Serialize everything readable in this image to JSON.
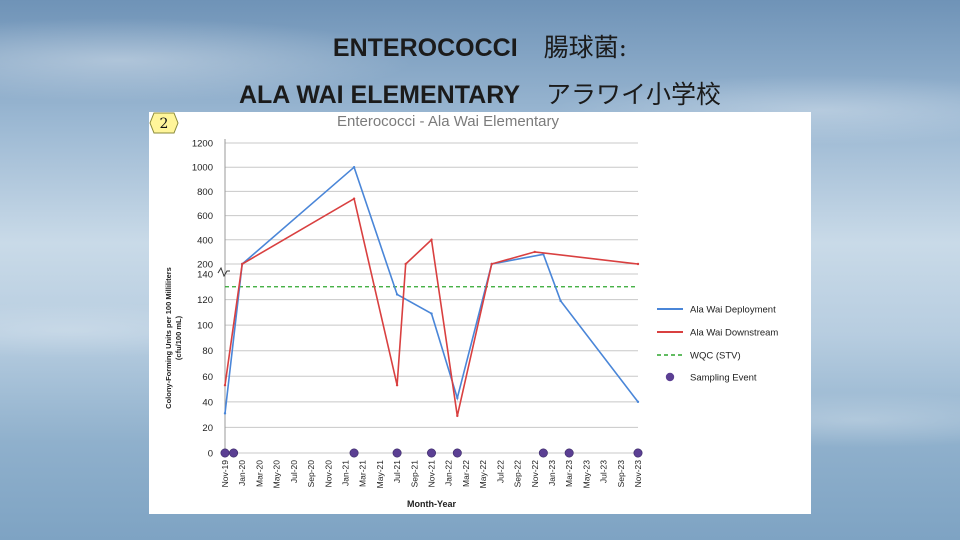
{
  "slide": {
    "title_en": "ENTEROCOCCI",
    "title_jp": "腸球菌:",
    "subtitle_en": "ALA WAI ELEMENTARY",
    "subtitle_jp": "アラワイ小学校"
  },
  "badge": "2",
  "colors": {
    "deployment": "#4a86d8",
    "downstream": "#d94040",
    "wqc": "#2ea62e",
    "event": "#5b3f93",
    "grid": "#c8c8c8"
  },
  "chart_data": {
    "type": "line",
    "title": "Enterococci - Ala Wai Elementary",
    "xlabel": "Month-Year",
    "ylabel_line1": "Colony-Forming Units per 100 Milliliters",
    "ylabel_line2": "(cfu/100 mL)",
    "y_axis": "broken",
    "ylim_lower": [
      0,
      140
    ],
    "ylim_upper": [
      140,
      1200
    ],
    "y_ticks_lower": [
      0,
      20,
      40,
      60,
      80,
      100,
      120,
      140
    ],
    "y_ticks_upper": [
      200,
      400,
      600,
      800,
      1000,
      1200
    ],
    "x_ticks": [
      "Nov-19",
      "Jan-20",
      "Mar-20",
      "May-20",
      "Jul-20",
      "Sep-20",
      "Nov-20",
      "Jan-21",
      "Mar-21",
      "May-21",
      "Jul-21",
      "Sep-21",
      "Nov-21",
      "Jan-22",
      "Mar-22",
      "May-22",
      "Jul-22",
      "Sep-22",
      "Nov-22",
      "Jan-23",
      "Mar-23",
      "May-23",
      "Jul-23",
      "Sep-23",
      "Nov-23"
    ],
    "series": [
      {
        "name": "Ala Wai Deployment",
        "points": [
          {
            "x": "Nov-19",
            "y": 31
          },
          {
            "x": "Jan-20",
            "y": 200
          },
          {
            "x": "Feb-21",
            "y": 1000
          },
          {
            "x": "Jul-21",
            "y": 124
          },
          {
            "x": "Nov-21",
            "y": 109
          },
          {
            "x": "Feb-22",
            "y": 43
          },
          {
            "x": "Jun-22",
            "y": 200
          },
          {
            "x": "Dec-22",
            "y": 280
          },
          {
            "x": "Feb-23",
            "y": 119
          },
          {
            "x": "Nov-23",
            "y": 40
          }
        ]
      },
      {
        "name": "Ala Wai Downstream",
        "points": [
          {
            "x": "Nov-19",
            "y": 53
          },
          {
            "x": "Jan-20",
            "y": 200
          },
          {
            "x": "Feb-21",
            "y": 740
          },
          {
            "x": "Jul-21",
            "y": 53
          },
          {
            "x": "Aug-21",
            "y": 200
          },
          {
            "x": "Nov-21",
            "y": 400
          },
          {
            "x": "Feb-22",
            "y": 29
          },
          {
            "x": "Jun-22",
            "y": 200
          },
          {
            "x": "Nov-22",
            "y": 300
          },
          {
            "x": "Nov-23",
            "y": 200
          }
        ]
      },
      {
        "name": "WQC (STV)",
        "style": "dashed",
        "value": 130
      },
      {
        "name": "Sampling Event",
        "style": "markers",
        "x": [
          "Nov-19",
          "Dec-19",
          "Feb-21",
          "Jul-21",
          "Nov-21",
          "Feb-22",
          "Dec-22",
          "Mar-23",
          "Nov-23"
        ],
        "y": 0
      }
    ],
    "legend": [
      "Ala Wai Deployment",
      "Ala Wai Downstream",
      "WQC (STV)",
      "Sampling Event"
    ],
    "legend_position": "right",
    "grid": true
  }
}
